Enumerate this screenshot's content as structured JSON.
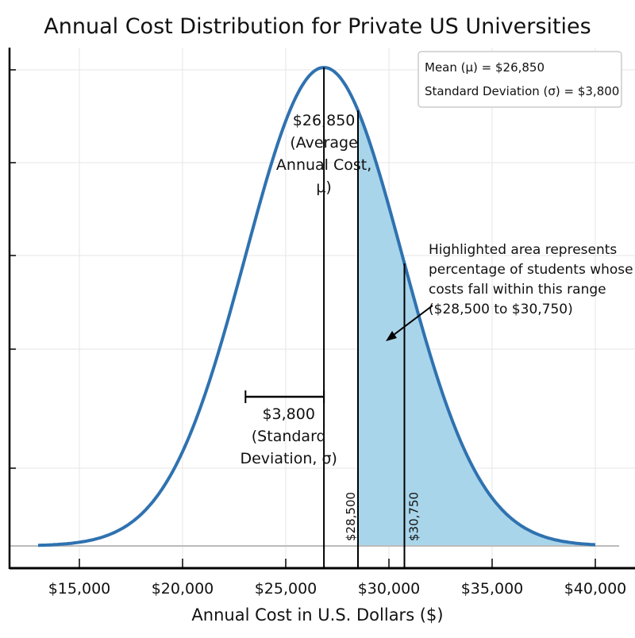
{
  "chart_data": {
    "type": "area",
    "title": "Annual Cost Distribution for Private US Universities",
    "xlabel": "Annual Cost in U.S. Dollars ($)",
    "ylabel": "",
    "xlim": [
      12500,
      41500
    ],
    "x_ticks": [
      15000,
      20000,
      25000,
      30000,
      35000,
      40000
    ],
    "x_tick_labels": [
      "$15,000",
      "$20,000",
      "$25,000",
      "$30,000",
      "$35,000",
      "$40,000"
    ],
    "y_tick_labels_shown": false,
    "grid": true,
    "distribution": {
      "kind": "normal",
      "mean": 26850,
      "sd": 3800,
      "x_range": [
        13000,
        40000
      ]
    },
    "highlight": {
      "from": 28500,
      "to": 30750,
      "color": "#a9d5ea"
    },
    "curve_color": "#2f72b0",
    "legend": {
      "placement": "top-right",
      "lines": [
        "Mean (μ) = $26,850",
        "Standard Deviation (σ) = $3,800"
      ]
    },
    "annotations": {
      "mean_label": [
        "$26,850",
        "(Average",
        "Annual Cost,",
        "μ)"
      ],
      "sd_label": [
        "$3,800",
        "(Standard",
        "Deviation, σ)"
      ],
      "lower_bound_label": "$28,500",
      "upper_bound_label": "$30,750",
      "highlight_note": [
        "Highlighted area represents",
        "percentage of students whose",
        "costs fall within this range",
        "($28,500 to $30,750)"
      ]
    }
  }
}
